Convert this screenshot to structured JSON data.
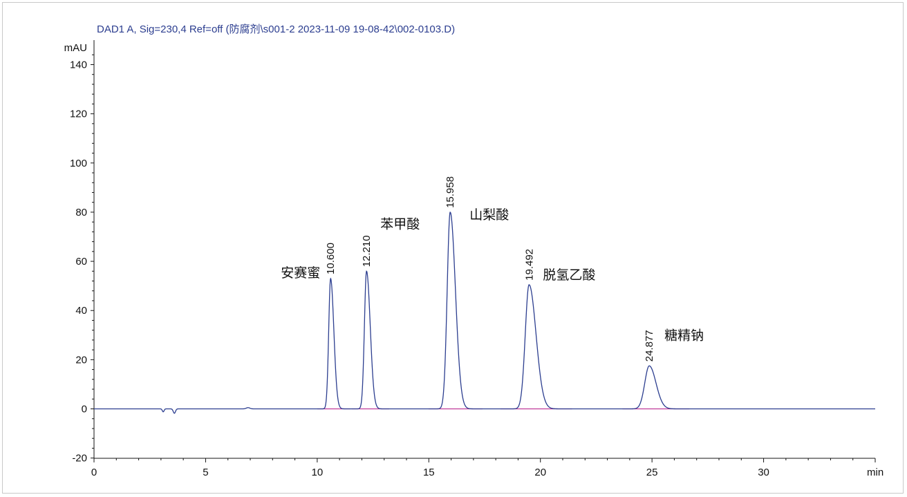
{
  "header": {
    "title": "DAD1 A, Sig=230,4 Ref=off (防腐剂\\s001-2 2023-11-09 19-08-42\\002-0103.D)"
  },
  "colors": {
    "signal": "#2b3d8f",
    "baseline": "#c0399a",
    "axis": "#111111"
  },
  "chart_data": {
    "type": "line",
    "ylabel": "mAU",
    "xlabel": "min",
    "xlim": [
      0,
      35
    ],
    "ylim": [
      -20,
      145
    ],
    "x_ticks": [
      0,
      5,
      10,
      15,
      20,
      25,
      30
    ],
    "y_ticks": [
      -20,
      0,
      20,
      40,
      60,
      80,
      100,
      120,
      140
    ],
    "grid": false,
    "series": [
      {
        "peaks": [
          {
            "rt": "10.600",
            "x": 10.6,
            "height": 53,
            "sigma": 0.085,
            "tail": 0.06,
            "name": "安赛蜜"
          },
          {
            "rt": "12.210",
            "x": 12.21,
            "height": 56,
            "sigma": 0.095,
            "tail": 0.07,
            "name": "苯甲酸"
          },
          {
            "rt": "15.958",
            "x": 15.958,
            "height": 80,
            "sigma": 0.135,
            "tail": 0.1,
            "name": "山梨酸"
          },
          {
            "rt": "19.492",
            "x": 19.492,
            "height": 50.5,
            "sigma": 0.17,
            "tail": 0.14,
            "name": "脱氢乙酸"
          },
          {
            "rt": "24.877",
            "x": 24.877,
            "height": 17.5,
            "sigma": 0.2,
            "tail": 0.1,
            "name": "糖精钠"
          }
        ],
        "disturbances": [
          {
            "x": 3.1,
            "height": -1.2,
            "sigma": 0.04
          },
          {
            "x": 3.6,
            "height": -1.8,
            "sigma": 0.05
          },
          {
            "x": 6.9,
            "height": 0.5,
            "sigma": 0.08
          }
        ]
      }
    ]
  }
}
